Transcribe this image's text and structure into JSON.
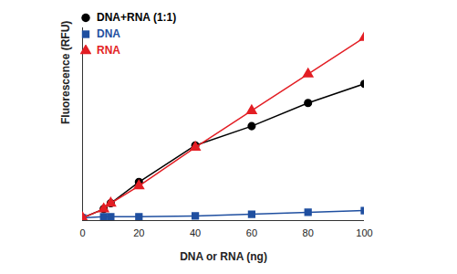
{
  "chart_data": {
    "type": "line",
    "x_label": "DNA or RNA (ng)",
    "y_label": "Fluorescence (RFU)",
    "x": [
      0,
      7.5,
      10,
      20,
      40,
      60,
      80,
      100
    ],
    "series": [
      {
        "name": "DNA+RNA (1:1)",
        "color": "#000000",
        "marker": "circle",
        "values": [
          1.4,
          6,
          9,
          20,
          39,
          49,
          61,
          71
        ]
      },
      {
        "name": "DNA",
        "color": "#1f4fa0",
        "marker": "square",
        "values": [
          1.4,
          2,
          2,
          2,
          2.4,
          3.3,
          4.3,
          5.2
        ]
      },
      {
        "name": "RNA",
        "color": "#e31e24",
        "marker": "triangle",
        "values": [
          1.4,
          6,
          9,
          18,
          38,
          57,
          76,
          95
        ]
      }
    ],
    "xlim": [
      0,
      100
    ],
    "xticks": [
      0,
      20,
      40,
      60,
      80,
      100
    ],
    "ylim": [
      0,
      100
    ],
    "tick_labels": "x",
    "grid": false,
    "legend": "top-left"
  }
}
